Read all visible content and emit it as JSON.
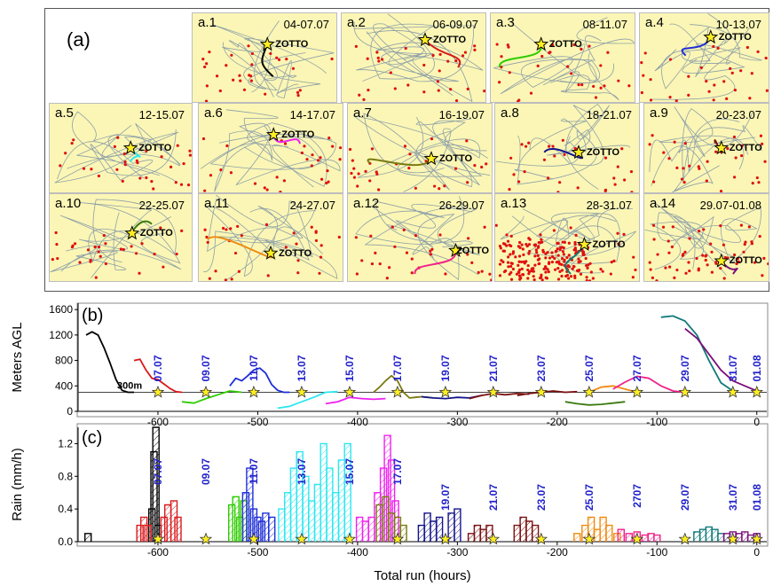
{
  "figure_a": {
    "label": "(a)",
    "station": "ZOTTO",
    "maps": [
      {
        "label": "a.1",
        "date": "04-07.07",
        "color": "#000000"
      },
      {
        "label": "a.2",
        "date": "06-09.07",
        "color": "#d7191c"
      },
      {
        "label": "a.3",
        "date": "08-11.07",
        "color": "#2ecc00"
      },
      {
        "label": "a.4",
        "date": "10-13.07",
        "color": "#1f2fd6"
      },
      {
        "label": "a.5",
        "date": "12-15.07",
        "color": "#2ee6f0"
      },
      {
        "label": "a.6",
        "date": "14-17.07",
        "color": "#ee22ee"
      },
      {
        "label": "a.7",
        "date": "16-19.07",
        "color": "#7a7a10"
      },
      {
        "label": "a.8",
        "date": "18-21.07",
        "color": "#14148a"
      },
      {
        "label": "a.9",
        "date": "20-23.07",
        "color": "#7a1010"
      },
      {
        "label": "a.10",
        "date": "22-25.07",
        "color": "#3a7a10"
      },
      {
        "label": "a.11",
        "date": "24-27.07",
        "color": "#f08a10"
      },
      {
        "label": "a.12",
        "date": "26-29.07",
        "color": "#f0228a"
      },
      {
        "label": "a.13",
        "date": "28-31.07",
        "color": "#107a7a"
      },
      {
        "label": "a.14",
        "date": "29.07-01.08",
        "color": "#7a107a"
      }
    ]
  },
  "chart_data": [
    {
      "type": "line",
      "panel_label": "(b)",
      "ylabel": "Meters AGL",
      "xlim": [
        -680,
        10
      ],
      "ylim": [
        0,
        1700
      ],
      "yticks": [
        0,
        400,
        800,
        1200,
        1600
      ],
      "xticks": [
        -600,
        -500,
        -400,
        -300,
        -200,
        -100,
        0
      ],
      "reference_line": {
        "value": 300,
        "label": "300m"
      },
      "date_labels": [
        "07.07",
        "09.07",
        "11.07",
        "13.07",
        "15.07",
        "17.07",
        "19.07",
        "21.07",
        "23.07",
        "25.07",
        "27.07",
        "29.07",
        "31.07",
        "01.08"
      ],
      "label_color": "#2222cc",
      "station_markers_x": [
        -600,
        -552,
        -504,
        -456,
        -408,
        -360,
        -312,
        -264,
        -216,
        -168,
        -120,
        -72,
        -24,
        0
      ],
      "series": [
        {
          "color": "#000000",
          "x": [
            -672,
            -666,
            -660,
            -654,
            -648,
            -642,
            -636,
            -630,
            -624
          ],
          "y": [
            1200,
            1250,
            1200,
            1000,
            760,
            500,
            330,
            300,
            300
          ]
        },
        {
          "color": "#d7191c",
          "x": [
            -624,
            -618,
            -612,
            -606,
            -600,
            -594,
            -588,
            -582,
            -576
          ],
          "y": [
            800,
            820,
            650,
            520,
            500,
            430,
            360,
            310,
            300
          ]
        },
        {
          "color": "#2ecc00",
          "x": [
            -576,
            -564,
            -552,
            -540,
            -528,
            -516
          ],
          "y": [
            150,
            130,
            200,
            260,
            320,
            300
          ]
        },
        {
          "color": "#1f2fd6",
          "x": [
            -528,
            -522,
            -516,
            -510,
            -504,
            -498,
            -492,
            -486,
            -480,
            -474,
            -468
          ],
          "y": [
            400,
            520,
            480,
            560,
            650,
            680,
            600,
            420,
            330,
            300,
            300
          ]
        },
        {
          "color": "#2ee6f0",
          "x": [
            -480,
            -468,
            -456,
            -444,
            -432,
            -420
          ],
          "y": [
            50,
            80,
            150,
            220,
            300,
            310
          ]
        },
        {
          "color": "#ee22ee",
          "x": [
            -432,
            -420,
            -408,
            -396,
            -384,
            -372
          ],
          "y": [
            120,
            150,
            220,
            200,
            190,
            200
          ]
        },
        {
          "color": "#7a7a10",
          "x": [
            -384,
            -378,
            -372,
            -366,
            -360,
            -354,
            -348,
            -342,
            -336,
            -330,
            -324
          ],
          "y": [
            300,
            380,
            480,
            560,
            480,
            300,
            210,
            220,
            230,
            220,
            210
          ]
        },
        {
          "color": "#14148a",
          "x": [
            -336,
            -324,
            -312,
            -300,
            -288,
            -276
          ],
          "y": [
            230,
            210,
            200,
            220,
            210,
            250
          ]
        },
        {
          "color": "#7a1010",
          "x": [
            -288,
            -276,
            -264,
            -252,
            -240,
            -228
          ],
          "y": [
            200,
            250,
            280,
            260,
            280,
            270
          ]
        },
        {
          "color": "#7a1010",
          "x": [
            -240,
            -228,
            -216,
            -204,
            -192,
            -180
          ],
          "y": [
            250,
            280,
            300,
            320,
            300,
            310
          ]
        },
        {
          "color": "#3a7a10",
          "x": [
            -192,
            -180,
            -168,
            -156,
            -144,
            -132
          ],
          "y": [
            150,
            120,
            100,
            110,
            130,
            150
          ]
        },
        {
          "color": "#f08a10",
          "x": [
            -168,
            -156,
            -144,
            -132,
            -120
          ],
          "y": [
            300,
            380,
            400,
            350,
            300
          ]
        },
        {
          "color": "#f0228a",
          "x": [
            -144,
            -132,
            -120,
            -108,
            -96,
            -84,
            -72
          ],
          "y": [
            350,
            460,
            550,
            520,
            400,
            320,
            300
          ]
        },
        {
          "color": "#107a7a",
          "x": [
            -96,
            -84,
            -72,
            -60,
            -48,
            -36,
            -24
          ],
          "y": [
            1480,
            1500,
            1420,
            1200,
            800,
            450,
            320
          ]
        },
        {
          "color": "#7a107a",
          "x": [
            -72,
            -60,
            -48,
            -36,
            -24,
            -12,
            0
          ],
          "y": [
            1300,
            1150,
            900,
            650,
            480,
            400,
            320
          ]
        }
      ]
    },
    {
      "type": "bar",
      "panel_label": "(c)",
      "ylabel": "Rain (mm/h)",
      "xlabel": "Total run (hours)",
      "xlim": [
        -680,
        10
      ],
      "ylim": [
        0,
        1.4
      ],
      "yticks": [
        0.0,
        0.4,
        0.8,
        1.2
      ],
      "yticklabels": [
        "0.0",
        "0.4",
        "0.8",
        "1.2"
      ],
      "xticks": [
        -600,
        -500,
        -400,
        -300,
        -200,
        -100,
        0
      ],
      "date_labels": [
        "07.07",
        "09.07",
        "11.07",
        "13.07",
        "15.07",
        "17.07",
        "19.07",
        "21.07",
        "23.07",
        "25.07",
        "2707",
        "29.07",
        "31.07",
        "01.08"
      ],
      "label_color": "#2222cc",
      "station_markers_x": [
        -600,
        -552,
        -504,
        -456,
        -408,
        -360,
        -312,
        -264,
        -216,
        -168,
        -120,
        -72,
        -24,
        0
      ],
      "series": [
        {
          "color": "#000000",
          "x": [
            -670,
            -606,
            -604,
            -602,
            -600
          ],
          "y": [
            0.1,
            0.4,
            1.1,
            1.4,
            0.2
          ]
        },
        {
          "color": "#d7191c",
          "x": [
            -618,
            -614,
            -610,
            -594,
            -590,
            -584,
            -580
          ],
          "y": [
            0.2,
            0.3,
            0.2,
            0.3,
            0.45,
            0.5,
            0.3
          ]
        },
        {
          "color": "#2ecc00",
          "x": [
            -526,
            -522,
            -518,
            -514
          ],
          "y": [
            0.45,
            0.55,
            0.3,
            0.5
          ]
        },
        {
          "color": "#1f2fd6",
          "x": [
            -512,
            -508,
            -504,
            -500,
            -496,
            -492,
            -486
          ],
          "y": [
            0.6,
            0.9,
            0.4,
            0.3,
            0.25,
            0.35,
            0.3
          ]
        },
        {
          "color": "#2ee6f0",
          "x": [
            -476,
            -470,
            -464,
            -458,
            -452,
            -446,
            -440,
            -434,
            -428,
            -422,
            -416,
            -410
          ],
          "y": [
            0.4,
            0.6,
            0.9,
            1.1,
            0.8,
            0.5,
            0.7,
            1.2,
            0.9,
            0.6,
            1.0,
            1.2
          ]
        },
        {
          "color": "#ee22ee",
          "x": [
            -398,
            -392,
            -386,
            -380,
            -374,
            -370,
            -366,
            -362
          ],
          "y": [
            0.3,
            0.25,
            0.3,
            0.6,
            0.9,
            1.3,
            1.0,
            0.5
          ]
        },
        {
          "color": "#7a7a10",
          "x": [
            -378,
            -372,
            -366,
            -360,
            -354
          ],
          "y": [
            0.45,
            0.55,
            0.35,
            0.3,
            0.2
          ]
        },
        {
          "color": "#14148a",
          "x": [
            -336,
            -330,
            -324,
            -318,
            -306,
            -300
          ],
          "y": [
            0.2,
            0.35,
            0.25,
            0.3,
            0.35,
            0.4
          ]
        },
        {
          "color": "#7a1010",
          "x": [
            -286,
            -280,
            -274,
            -268
          ],
          "y": [
            0.1,
            0.2,
            0.15,
            0.2
          ]
        },
        {
          "color": "#7a1010",
          "x": [
            -240,
            -234,
            -228,
            -222
          ],
          "y": [
            0.2,
            0.3,
            0.25,
            0.2
          ]
        },
        {
          "color": "#f08a10",
          "x": [
            -180,
            -172,
            -166,
            -160,
            -154,
            -148,
            -140
          ],
          "y": [
            0.1,
            0.2,
            0.3,
            0.15,
            0.3,
            0.2,
            0.1
          ]
        },
        {
          "color": "#f0228a",
          "x": [
            -136,
            -128,
            -120,
            -112,
            -106,
            -100
          ],
          "y": [
            0.15,
            0.1,
            0.12,
            0.08,
            0.1,
            0.08
          ]
        },
        {
          "color": "#107a7a",
          "x": [
            -60,
            -54,
            -48,
            -42,
            -36
          ],
          "y": [
            0.12,
            0.15,
            0.18,
            0.15,
            0.1
          ]
        },
        {
          "color": "#7a107a",
          "x": [
            -30,
            -24,
            -18,
            -12,
            -6,
            0
          ],
          "y": [
            0.1,
            0.12,
            0.1,
            0.12,
            0.08,
            0.1
          ]
        }
      ]
    }
  ]
}
